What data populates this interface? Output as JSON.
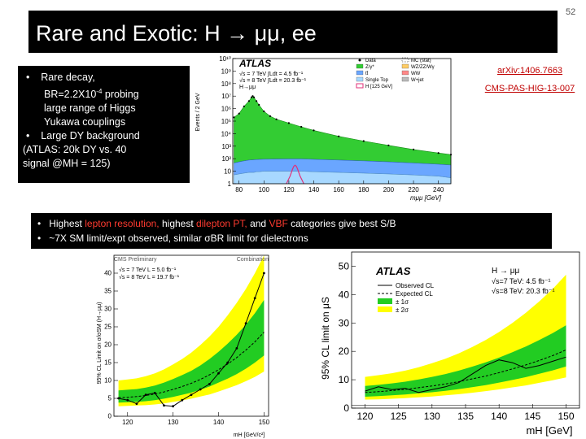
{
  "slide": {
    "number": "52",
    "title": "Rare and Exotic:  H → μμ, ee",
    "bullets_top": {
      "b1_prefix": "Rare decay,",
      "b1_line2a": "BR=2.2X10",
      "b1_sup": "-4",
      "b1_line2b": " probing",
      "b1_line3": "large range of Higgs",
      "b1_line4": "Yukawa couplings",
      "b2": "Large DY background",
      "b3": "(ATLAS: 20k DY vs. 40",
      "b4": "signal @MH = 125)"
    },
    "bullets_bottom": {
      "l1_a": "Highest ",
      "l1_b": "lepton resolution,",
      "l1_c": " highest ",
      "l1_d": "dilepton PT,",
      "l1_e": " and ",
      "l1_f": "VBF",
      "l1_g": " categories give best S/B",
      "l2": "~7X SM limit/expt observed, similar σBR limit for dielectrons"
    },
    "refs": {
      "arxiv": "arXiv:1406.7663",
      "cms": "CMS-PAS-HIG-13-007"
    }
  },
  "colors": {
    "title_bg": "#000000",
    "highlight": "#ff3b30",
    "ref_link": "#c00000",
    "green_band": "#22cc22",
    "yellow_band": "#ffff00",
    "dy_fill": "#33cc33"
  },
  "chart_data": [
    {
      "type": "area",
      "name": "ATLAS dimuon mass spectrum",
      "title": "ATLAS",
      "legend_text": [
        "√s = 7 TeV ∫Ldt = 4.5 fb⁻¹",
        "√s = 8 TeV ∫Ldt = 20.3 fb⁻¹",
        "H→μμ"
      ],
      "legend_entries": [
        "Data",
        "Z/γ*",
        "tt̄",
        "Single Top",
        "H [125 GeV]",
        "MC (stat)",
        "WZ/ZZ/Wγ",
        "WW",
        "W+jet"
      ],
      "xlabel": "mμμ [GeV]",
      "ylabel": "Events / 2 GeV",
      "x_ticks": [
        80,
        100,
        120,
        140,
        160,
        180,
        200,
        220,
        240
      ],
      "y_tick_labels": [
        "1",
        "10",
        "10²",
        "10³",
        "10⁴",
        "10⁵",
        "10⁶",
        "10⁷",
        "10⁸",
        "10⁹",
        "10¹⁰"
      ],
      "xlim": [
        75,
        250
      ],
      "ylim_log": [
        1,
        10000000000.0
      ],
      "x": [
        76,
        80,
        84,
        88,
        90,
        91,
        92,
        94,
        96,
        100,
        105,
        110,
        120,
        130,
        140,
        160,
        180,
        200,
        220,
        240,
        250
      ],
      "dy_values": [
        200000.0,
        400000.0,
        1500000.0,
        4000000.0,
        8000000.0,
        10000000.0,
        8000000.0,
        4000000.0,
        2000000.0,
        600000.0,
        250000.0,
        140000.0,
        70000.0,
        35000.0,
        18000.0,
        6000.0,
        2500.0,
        1100.0,
        500,
        250,
        180
      ],
      "ttbar_values": [
        40,
        50,
        60,
        70,
        72,
        73,
        74,
        76,
        78,
        80,
        82,
        84,
        86,
        85,
        80,
        70,
        60,
        50,
        40,
        32,
        28
      ],
      "single_top_values": [
        5,
        6,
        7,
        8,
        8,
        8,
        8,
        9,
        9,
        10,
        10,
        10,
        10,
        10,
        9,
        8,
        7,
        6,
        5,
        4,
        3
      ],
      "signal": {
        "x": [
          118,
          121,
          123,
          124,
          125,
          126,
          127,
          129,
          132
        ],
        "values": [
          1,
          4,
          15,
          25,
          30,
          25,
          15,
          4,
          1
        ]
      }
    },
    {
      "type": "line",
      "name": "CMS combination limit",
      "title": "CMS Preliminary",
      "header_right": "Combination",
      "legend_text": [
        "√s = 7 TeV L = 5.0 fb⁻¹",
        "√s = 8 TeV L = 19.7 fb⁻¹"
      ],
      "xlabel": "mH [GeV/c²]",
      "ylabel": "95% CL Limit on σ/σSM (H→μμ)",
      "x_ticks": [
        120,
        130,
        140,
        150
      ],
      "y_ticks": [
        0,
        5,
        10,
        15,
        20,
        25,
        30,
        35,
        40
      ],
      "xlim": [
        117,
        151
      ],
      "ylim": [
        0,
        45
      ],
      "x": [
        118,
        120,
        122,
        124,
        126,
        128,
        130,
        132,
        134,
        136,
        138,
        140,
        142,
        144,
        146,
        148,
        150
      ],
      "series": [
        {
          "name": "Observed",
          "values": [
            5.0,
            4.5,
            3.5,
            6.0,
            6.5,
            3.0,
            2.8,
            4.5,
            6.0,
            7.5,
            9.0,
            12.0,
            15.0,
            19.0,
            26.0,
            33.0,
            40.0
          ]
        },
        {
          "name": "Expected",
          "values": [
            5.2,
            5.3,
            5.5,
            5.8,
            6.2,
            6.8,
            7.5,
            8.3,
            9.2,
            10.3,
            11.6,
            13.0,
            14.6,
            16.4,
            18.5,
            20.8,
            23.5
          ]
        },
        {
          "name": "1sigma_low",
          "values": [
            3.8,
            3.9,
            4.0,
            4.2,
            4.5,
            4.9,
            5.4,
            6.0,
            6.6,
            7.4,
            8.3,
            9.4,
            10.5,
            11.8,
            13.3,
            15.0,
            17.0
          ]
        },
        {
          "name": "1sigma_high",
          "values": [
            7.2,
            7.4,
            7.6,
            8.0,
            8.6,
            9.4,
            10.4,
            11.5,
            12.7,
            14.2,
            16.0,
            18.0,
            20.3,
            22.8,
            25.6,
            28.8,
            32.5
          ]
        },
        {
          "name": "2sigma_low",
          "values": [
            2.8,
            2.9,
            3.0,
            3.1,
            3.3,
            3.6,
            4.0,
            4.4,
            4.9,
            5.5,
            6.1,
            6.9,
            7.8,
            8.7,
            9.8,
            11.0,
            12.5
          ]
        },
        {
          "name": "2sigma_high",
          "values": [
            10.0,
            10.3,
            10.6,
            11.2,
            12.0,
            13.1,
            14.5,
            16.0,
            17.8,
            19.9,
            22.3,
            25.0,
            28.2,
            31.7,
            35.6,
            40.0,
            45.0
          ]
        }
      ]
    },
    {
      "type": "line",
      "name": "ATLAS limit on mu",
      "title": "ATLAS",
      "legend_text": [
        "H → μμ",
        "√s=7 TeV: 4.5 fb⁻¹",
        "√s=8 TeV: 20.3 fb⁻¹"
      ],
      "legend_entries": [
        "Observed CL",
        "Expected CL",
        "± 1σ",
        "± 2σ"
      ],
      "xlabel": "mH [GeV]",
      "ylabel": "95% CL limit on μS",
      "x_ticks": [
        120,
        125,
        130,
        135,
        140,
        145,
        150
      ],
      "y_ticks": [
        0,
        10,
        20,
        30,
        40,
        50
      ],
      "xlim": [
        118,
        152
      ],
      "ylim": [
        0,
        55
      ],
      "x": [
        120,
        122,
        124,
        126,
        128,
        130,
        132,
        134,
        136,
        138,
        140,
        142,
        144,
        146,
        148,
        150
      ],
      "series": [
        {
          "name": "Observed",
          "values": [
            6.0,
            7.5,
            6.5,
            7.0,
            5.5,
            6.5,
            7.5,
            9.0,
            12.0,
            15.0,
            17.0,
            16.0,
            14.0,
            15.0,
            16.5,
            18.0
          ]
        },
        {
          "name": "Expected",
          "values": [
            5.5,
            5.8,
            6.2,
            6.6,
            7.2,
            7.8,
            8.5,
            9.3,
            10.3,
            11.3,
            12.5,
            13.8,
            15.2,
            16.8,
            18.5,
            20.5
          ]
        },
        {
          "name": "1sigma_low",
          "values": [
            4.0,
            4.2,
            4.5,
            4.8,
            5.2,
            5.6,
            6.1,
            6.7,
            7.4,
            8.1,
            9.0,
            9.9,
            10.9,
            12.1,
            13.3,
            14.7
          ]
        },
        {
          "name": "1sigma_high",
          "values": [
            7.8,
            8.2,
            8.7,
            9.3,
            10.1,
            11.0,
            12.0,
            13.2,
            14.6,
            16.1,
            17.8,
            19.7,
            21.7,
            24.0,
            26.4,
            29.2
          ]
        },
        {
          "name": "2sigma_low",
          "values": [
            3.0,
            3.1,
            3.3,
            3.5,
            3.8,
            4.1,
            4.5,
            4.9,
            5.4,
            6.0,
            6.6,
            7.3,
            8.0,
            8.9,
            9.8,
            10.8
          ]
        },
        {
          "name": "2sigma_high",
          "values": [
            11.0,
            11.6,
            12.3,
            13.2,
            14.4,
            15.8,
            17.4,
            19.3,
            21.5,
            24.0,
            26.8,
            30.0,
            33.6,
            37.6,
            42.0,
            47.0
          ]
        }
      ]
    }
  ]
}
